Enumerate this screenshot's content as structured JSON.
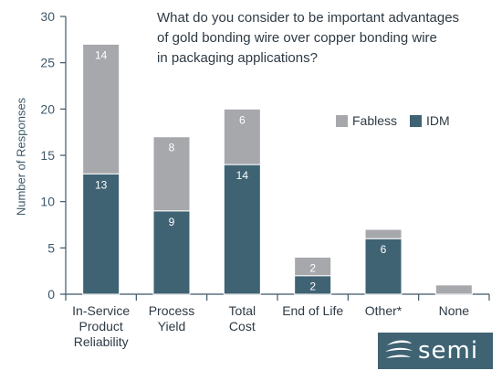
{
  "chart_data": {
    "type": "bar",
    "stacked": true,
    "title": "What do you consider to be important advantages\nof gold bonding wire over copper bonding wire\nin packaging applications?",
    "ylabel": "Number of Responses",
    "xlabel": "",
    "ylim": [
      0,
      30
    ],
    "yticks": [
      0,
      5,
      10,
      15,
      20,
      25,
      30
    ],
    "legend_position": "right",
    "categories": [
      [
        "In-Service",
        "Product",
        "Reliability"
      ],
      [
        "Process",
        "Yield"
      ],
      [
        "Total",
        "Cost"
      ],
      [
        "End of Life"
      ],
      [
        "Other*"
      ],
      [
        "None"
      ]
    ],
    "series": [
      {
        "name": "IDM",
        "color": "#3f6373",
        "values": [
          13,
          9,
          14,
          2,
          6,
          0
        ],
        "labels": [
          "13",
          "9",
          "14",
          "2",
          "6",
          ""
        ]
      },
      {
        "name": "Fabless",
        "color": "#a6a8ab",
        "values": [
          14,
          8,
          6,
          2,
          1,
          1
        ],
        "labels": [
          "14",
          "8",
          "6",
          "2",
          "",
          ""
        ]
      }
    ]
  },
  "legend": {
    "fabless": "Fabless",
    "idm": "IDM"
  },
  "logo": {
    "text": "semi"
  }
}
